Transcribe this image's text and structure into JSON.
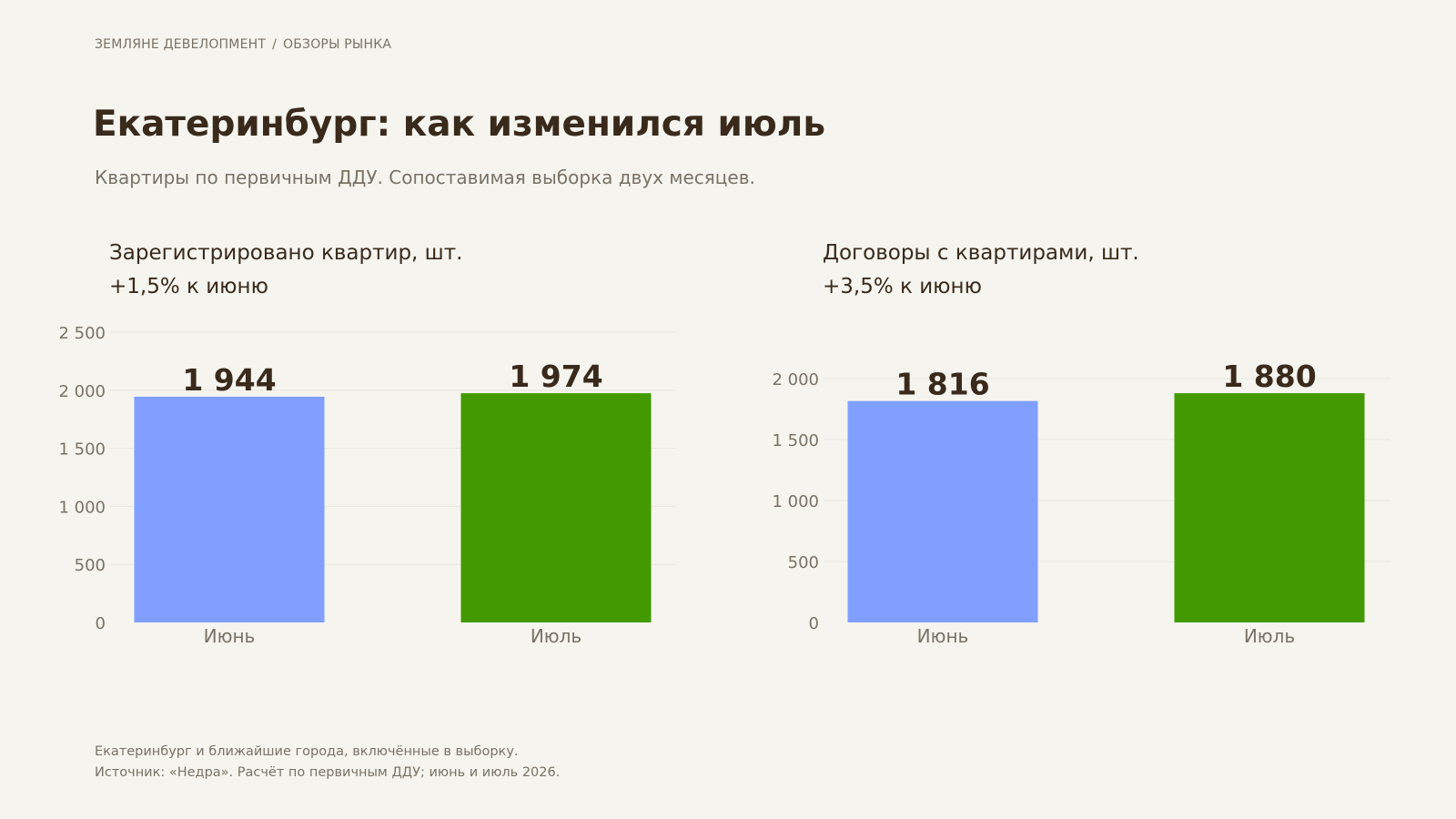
{
  "breadcrumb": {
    "company": "ЗЕМЛЯНЕ ДЕВЕЛОПМЕНТ",
    "separator": "/",
    "section": "ОБЗОРЫ РЫНКА"
  },
  "title": "Екатеринбург: как изменился июль",
  "subtitle": "Квартиры по первичным ДДУ. Сопоставимая выборка двух месяцев.",
  "colors": {
    "background": "#f5f4ee",
    "june_bar": "#809ffe",
    "july_bar": "#429a00",
    "title_text": "#3a2a1c",
    "muted_text": "#7a7266",
    "gridline": "#e8e6df"
  },
  "chart_data": [
    {
      "type": "bar",
      "title": "Зарегистрировано квартир, шт.",
      "subtitle": "+1,5% к июню",
      "categories": [
        "Июнь",
        "Июль"
      ],
      "values": [
        1944,
        1974
      ],
      "value_labels": [
        "1 944",
        "1 974"
      ],
      "ylim": [
        0,
        2500
      ],
      "yticks": [
        0,
        500,
        1000,
        1500,
        2000,
        2500
      ],
      "ytick_labels": [
        "0",
        "500",
        "1 000",
        "1 500",
        "2 000",
        "2 500"
      ],
      "grid": true,
      "bar_colors": [
        "#809ffe",
        "#429a00"
      ]
    },
    {
      "type": "bar",
      "title": "Договоры с квартирами, шт.",
      "subtitle": "+3,5% к июню",
      "categories": [
        "Июнь",
        "Июль"
      ],
      "values": [
        1816,
        1880
      ],
      "value_labels": [
        "1 816",
        "1 880"
      ],
      "ylim": [
        0,
        2000
      ],
      "yticks": [
        0,
        500,
        1000,
        1500,
        2000
      ],
      "ytick_labels": [
        "0",
        "500",
        "1 000",
        "1 500",
        "2 000"
      ],
      "grid": true,
      "bar_colors": [
        "#809ffe",
        "#429a00"
      ]
    }
  ],
  "footnote": {
    "line1": "Екатеринбург и ближайшие города, включённые в выборку.",
    "line2": "Источник: «Недра». Расчёт по первичным ДДУ; июнь и июль 2026."
  }
}
